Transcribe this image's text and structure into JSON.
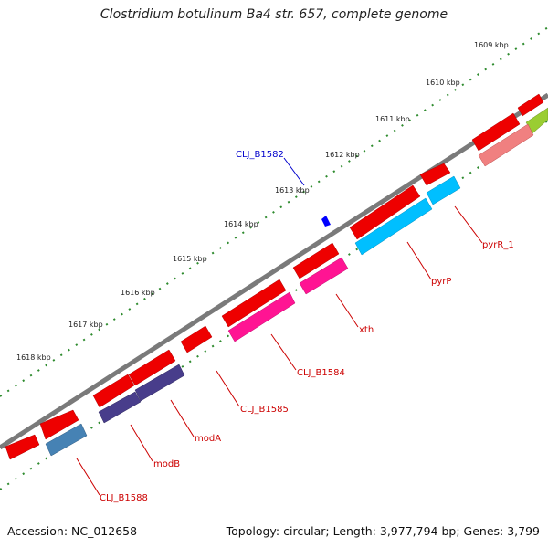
{
  "title": "Clostridium botulinum Ba4 str. 657, complete genome",
  "footer": {
    "accession": "Accession: NC_012658",
    "summary": "Topology: circular; Length: 3,977,794 bp; Genes: 3,799"
  },
  "scale_labels": [
    "1609 kbp",
    "1610 kbp",
    "1611 kbp",
    "1612 kbp",
    "1613 kbp",
    "1614 kbp",
    "1615 kbp",
    "1616 kbp",
    "1617 kbp",
    "1618 kbp"
  ],
  "gene_labels": [
    {
      "id": "clj-b1582",
      "text": "CLJ_B1582",
      "color": "#0000cc"
    },
    {
      "id": "pyrr-1",
      "text": "pyrR_1",
      "color": "#cc0000"
    },
    {
      "id": "pyrp",
      "text": "pyrP",
      "color": "#cc0000"
    },
    {
      "id": "xth",
      "text": "xth",
      "color": "#cc0000"
    },
    {
      "id": "clj-b1584",
      "text": "CLJ_B1584",
      "color": "#cc0000"
    },
    {
      "id": "clj-b1585",
      "text": "CLJ_B1585",
      "color": "#cc0000"
    },
    {
      "id": "moda",
      "text": "modA",
      "color": "#cc0000"
    },
    {
      "id": "modb",
      "text": "modB",
      "color": "#cc0000"
    },
    {
      "id": "clj-b1588",
      "text": "CLJ_B1588",
      "color": "#cc0000"
    }
  ],
  "colors": {
    "backbone": "#7a7a7a",
    "tick_track": "#2e8b2e",
    "gene_red": "#ee0000",
    "cds_pink_light": "#f08080",
    "cds_olive": "#9acd32",
    "cds_cyan": "#00bfff",
    "cds_magenta": "#ff1493",
    "cds_purple": "#483d8b",
    "cds_steel": "#4682b4",
    "marker_blue": "#0000ff"
  }
}
